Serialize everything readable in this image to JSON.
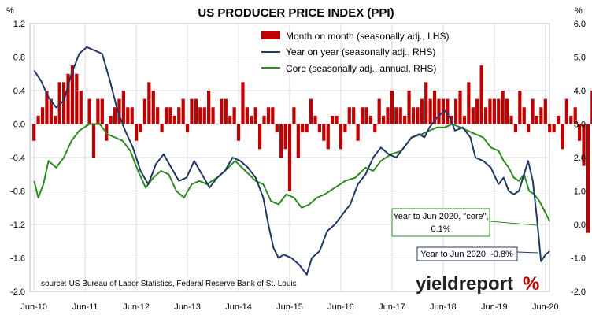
{
  "chart_data": {
    "type": "bar+line",
    "title": "US PRODUCER PRICE INDEX (PPI)",
    "left_unit": "%",
    "right_unit": "%",
    "x_range": [
      "2010-06",
      "2020-06"
    ],
    "x_tick_labels": [
      "Jun-10",
      "Jun-11",
      "Jun-12",
      "Jun-13",
      "Jun-14",
      "Jun-15",
      "Jun-16",
      "Jun-17",
      "Jun-18",
      "Jun-19",
      "Jun-20"
    ],
    "y_left": {
      "min": -2.0,
      "max": 1.2,
      "ticks": [
        "-2.0",
        "-1.6",
        "-1.2",
        "-0.8",
        "-0.4",
        "0.0",
        "0.4",
        "0.8",
        "1.2"
      ]
    },
    "y_right": {
      "min": -2.0,
      "max": 6.0,
      "ticks": [
        "-2.0",
        "-1.0",
        "0.0",
        "1.0",
        "2.0",
        "3.0",
        "4.0",
        "5.0",
        "6.0"
      ]
    },
    "grid": true,
    "legend_position": "top-right",
    "series": [
      {
        "name": "Month on month (seasonally adj., LHS)",
        "type": "bar",
        "axis": "left",
        "color": "#c00000",
        "values": [
          -0.2,
          0.1,
          0.2,
          0.4,
          0.3,
          0.1,
          0.5,
          0.5,
          0.6,
          0.7,
          0.6,
          0.4,
          0.0,
          0.3,
          -0.4,
          0.3,
          0.3,
          -0.2,
          0.1,
          0.2,
          0.3,
          0.4,
          0.2,
          0.2,
          -0.2,
          -0.1,
          0.3,
          0.5,
          0.4,
          0.2,
          -0.1,
          0.2,
          0.2,
          0.1,
          0.2,
          0.3,
          -0.1,
          0.3,
          0.3,
          0.2,
          0.2,
          0.4,
          0.2,
          0.0,
          0.3,
          0.3,
          0.1,
          0.2,
          -0.2,
          0.5,
          0.2,
          0.1,
          0.2,
          -0.3,
          0.1,
          0.2,
          0.2,
          -0.1,
          -0.4,
          -0.3,
          -0.8,
          0.2,
          -0.4,
          -0.1,
          -0.1,
          0.3,
          0.1,
          -0.1,
          -0.2,
          -0.3,
          0.1,
          0.1,
          -0.3,
          -0.1,
          0.2,
          0.2,
          -0.2,
          0.2,
          0.2,
          0.1,
          -0.1,
          0.3,
          0.1,
          0.2,
          0.4,
          0.2,
          0.2,
          0.1,
          0.4,
          0.2,
          0.2,
          0.3,
          0.5,
          0.3,
          0.4,
          0.3,
          0.3,
          0.3,
          0.1,
          0.3,
          0.4,
          0.1,
          0.5,
          0.2,
          0.3,
          0.7,
          0.2,
          0.3,
          0.3,
          0.3,
          0.4,
          0.3,
          0.1,
          -0.1,
          0.4,
          0.2,
          -0.1,
          0.3,
          0.1,
          0.2,
          0.3,
          -0.1,
          -0.1,
          0.1,
          -0.3,
          0.3,
          0.1,
          0.2,
          -0.2,
          -0.5,
          -1.3,
          0.4,
          -0.2
        ]
      },
      {
        "name": "Year on year (seasonally adj., RHS)",
        "type": "line",
        "axis": "right",
        "color": "#1f3864",
        "points": [
          [
            2010.42,
            4.6
          ],
          [
            2010.55,
            4.3
          ],
          [
            2010.7,
            3.8
          ],
          [
            2010.85,
            3.5
          ],
          [
            2011.0,
            3.7
          ],
          [
            2011.15,
            4.5
          ],
          [
            2011.3,
            5.1
          ],
          [
            2011.45,
            5.3
          ],
          [
            2011.6,
            5.2
          ],
          [
            2011.75,
            5.1
          ],
          [
            2011.9,
            4.3
          ],
          [
            2012.05,
            3.4
          ],
          [
            2012.2,
            2.8
          ],
          [
            2012.35,
            2.3
          ],
          [
            2012.5,
            1.6
          ],
          [
            2012.65,
            1.2
          ],
          [
            2012.8,
            1.8
          ],
          [
            2012.95,
            2.1
          ],
          [
            2013.1,
            1.7
          ],
          [
            2013.25,
            1.3
          ],
          [
            2013.4,
            1.4
          ],
          [
            2013.55,
            1.9
          ],
          [
            2013.7,
            1.5
          ],
          [
            2013.85,
            1.1
          ],
          [
            2014.0,
            1.4
          ],
          [
            2014.15,
            1.6
          ],
          [
            2014.3,
            2.0
          ],
          [
            2014.45,
            1.9
          ],
          [
            2014.6,
            1.7
          ],
          [
            2014.75,
            1.4
          ],
          [
            2014.9,
            0.8
          ],
          [
            2015.0,
            0.0
          ],
          [
            2015.1,
            -0.7
          ],
          [
            2015.2,
            -1.0
          ],
          [
            2015.3,
            -0.9
          ],
          [
            2015.45,
            -1.0
          ],
          [
            2015.6,
            -1.2
          ],
          [
            2015.75,
            -1.5
          ],
          [
            2015.85,
            -1.0
          ],
          [
            2016.0,
            -0.8
          ],
          [
            2016.15,
            -0.2
          ],
          [
            2016.3,
            0.0
          ],
          [
            2016.45,
            0.3
          ],
          [
            2016.6,
            0.6
          ],
          [
            2016.75,
            1.2
          ],
          [
            2016.9,
            1.5
          ],
          [
            2017.05,
            2.0
          ],
          [
            2017.2,
            2.3
          ],
          [
            2017.35,
            2.1
          ],
          [
            2017.5,
            2.0
          ],
          [
            2017.65,
            2.3
          ],
          [
            2017.8,
            2.6
          ],
          [
            2017.95,
            2.7
          ],
          [
            2018.05,
            2.6
          ],
          [
            2018.15,
            2.9
          ],
          [
            2018.3,
            3.2
          ],
          [
            2018.45,
            3.4
          ],
          [
            2018.55,
            3.2
          ],
          [
            2018.65,
            2.8
          ],
          [
            2018.8,
            2.9
          ],
          [
            2018.95,
            2.6
          ],
          [
            2019.05,
            2.0
          ],
          [
            2019.2,
            1.9
          ],
          [
            2019.35,
            1.7
          ],
          [
            2019.5,
            1.2
          ],
          [
            2019.6,
            1.4
          ],
          [
            2019.7,
            1.0
          ],
          [
            2019.8,
            0.9
          ],
          [
            2019.9,
            1.0
          ],
          [
            2020.0,
            1.5
          ],
          [
            2020.08,
            1.9
          ],
          [
            2020.17,
            1.3
          ],
          [
            2020.25,
            0.2
          ],
          [
            2020.33,
            -1.1
          ],
          [
            2020.42,
            -0.9
          ],
          [
            2020.5,
            -0.8
          ]
        ]
      },
      {
        "name": "Core (seasonally adj., annual, RHS)",
        "type": "line",
        "axis": "right",
        "color": "#2e8b22",
        "points": [
          [
            2010.42,
            1.3
          ],
          [
            2010.5,
            0.8
          ],
          [
            2010.6,
            1.2
          ],
          [
            2010.7,
            1.9
          ],
          [
            2010.85,
            1.7
          ],
          [
            2011.0,
            2.0
          ],
          [
            2011.15,
            2.5
          ],
          [
            2011.3,
            2.8
          ],
          [
            2011.5,
            3.0
          ],
          [
            2011.7,
            3.0
          ],
          [
            2011.85,
            2.7
          ],
          [
            2012.0,
            2.6
          ],
          [
            2012.15,
            2.5
          ],
          [
            2012.3,
            2.2
          ],
          [
            2012.45,
            1.6
          ],
          [
            2012.6,
            1.1
          ],
          [
            2012.75,
            1.4
          ],
          [
            2012.9,
            1.6
          ],
          [
            2013.05,
            1.5
          ],
          [
            2013.2,
            1.0
          ],
          [
            2013.35,
            0.8
          ],
          [
            2013.5,
            1.2
          ],
          [
            2013.65,
            1.3
          ],
          [
            2013.8,
            1.2
          ],
          [
            2014.0,
            1.4
          ],
          [
            2014.15,
            1.6
          ],
          [
            2014.35,
            1.9
          ],
          [
            2014.55,
            1.6
          ],
          [
            2014.75,
            1.3
          ],
          [
            2014.9,
            1.2
          ],
          [
            2015.05,
            0.7
          ],
          [
            2015.2,
            0.6
          ],
          [
            2015.35,
            0.9
          ],
          [
            2015.5,
            0.8
          ],
          [
            2015.65,
            0.5
          ],
          [
            2015.8,
            0.6
          ],
          [
            2015.95,
            0.8
          ],
          [
            2016.1,
            0.9
          ],
          [
            2016.3,
            1.1
          ],
          [
            2016.5,
            1.3
          ],
          [
            2016.7,
            1.4
          ],
          [
            2016.9,
            1.7
          ],
          [
            2017.05,
            1.6
          ],
          [
            2017.2,
            1.9
          ],
          [
            2017.4,
            2.1
          ],
          [
            2017.6,
            2.2
          ],
          [
            2017.8,
            2.6
          ],
          [
            2018.0,
            2.7
          ],
          [
            2018.15,
            2.8
          ],
          [
            2018.3,
            2.9
          ],
          [
            2018.45,
            2.9
          ],
          [
            2018.6,
            3.0
          ],
          [
            2018.75,
            2.9
          ],
          [
            2018.9,
            2.8
          ],
          [
            2019.05,
            2.7
          ],
          [
            2019.2,
            2.6
          ],
          [
            2019.35,
            2.3
          ],
          [
            2019.5,
            2.2
          ],
          [
            2019.6,
            1.9
          ],
          [
            2019.7,
            1.7
          ],
          [
            2019.8,
            1.4
          ],
          [
            2019.9,
            1.3
          ],
          [
            2020.0,
            1.5
          ],
          [
            2020.1,
            1.0
          ],
          [
            2020.2,
            0.9
          ],
          [
            2020.3,
            0.7
          ],
          [
            2020.4,
            0.4
          ],
          [
            2020.5,
            0.1
          ]
        ]
      }
    ],
    "annotations": [
      {
        "text_lines": [
          "Year to Jun 2020, \"core\",",
          "0.1%"
        ],
        "series": "core",
        "color": "#2e8b22"
      },
      {
        "text_lines": [
          "Year to Jun 2020, -0.8%"
        ],
        "series": "yoy",
        "color": "#1f3864"
      }
    ],
    "source": "source: US Bureau of Labor Statistics, Federal Reserve Bank of St. Louis",
    "logo_text": "yieldreport",
    "logo_symbol": "%"
  }
}
